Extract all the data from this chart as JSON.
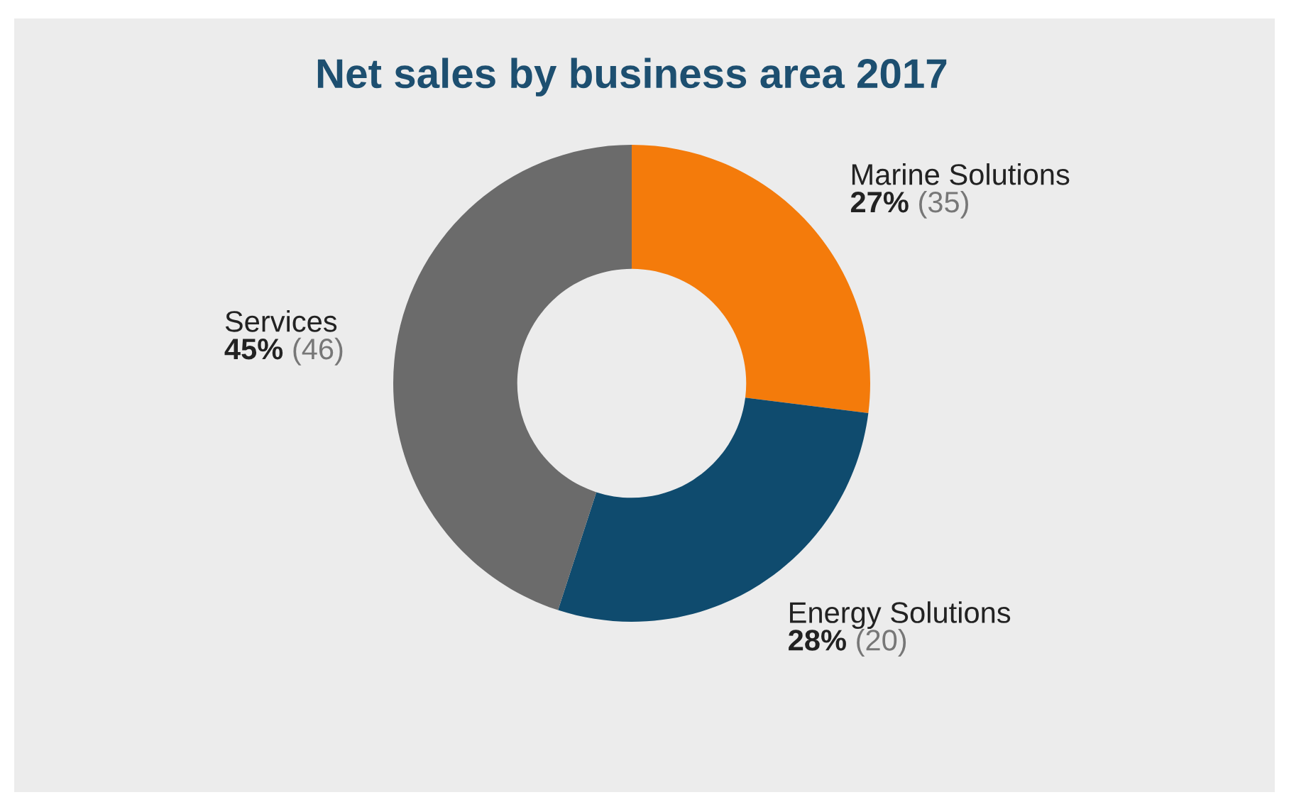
{
  "chart_data": {
    "type": "donut",
    "title": "Net sales by business area 2017",
    "categories": [
      "Marine Solutions",
      "Energy Solutions",
      "Services"
    ],
    "values": [
      27,
      28,
      45
    ],
    "colors": [
      "#f47b0b",
      "#0f4b6e",
      "#6b6b6b"
    ],
    "value_labels": [
      "27% (35)",
      "28% (20)",
      "45% (46)"
    ]
  }
}
